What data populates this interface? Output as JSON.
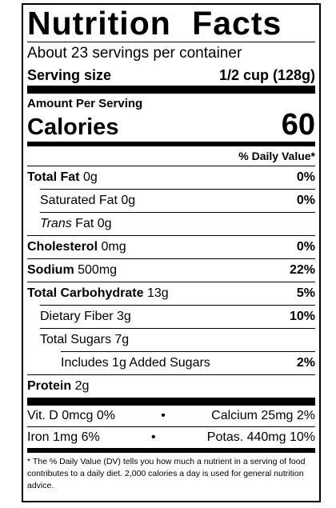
{
  "title": "Nutrition Facts",
  "servings": "About 23 servings per container",
  "serving_size": {
    "label": "Serving size",
    "value": "1/2 cup (128g)"
  },
  "amount_per_serving": "Amount Per Serving",
  "calories": {
    "label": "Calories",
    "value": 60
  },
  "daily_value_header": "% Daily Value*",
  "nutrients": [
    {
      "name": "Total Fat",
      "amount": "0g",
      "dv": "0%"
    },
    {
      "name": "Saturated Fat",
      "amount": "0g",
      "dv": "0%"
    },
    {
      "name_italic": "Trans",
      "name": "Fat",
      "amount": "0g"
    },
    {
      "name": "Cholesterol",
      "amount": "0mg",
      "dv": "0%"
    },
    {
      "name": "Sodium",
      "amount": "500mg",
      "dv": "22%"
    },
    {
      "name": "Total Carbohydrate",
      "amount": "13g",
      "dv": "5%"
    },
    {
      "name": "Dietary Fiber",
      "amount": "3g",
      "dv": "10%"
    },
    {
      "name": "Total Sugars",
      "amount": "7g"
    },
    {
      "name": "Includes 1g Added Sugars",
      "dv": "2%"
    },
    {
      "name": "Protein",
      "amount": "2g"
    }
  ],
  "vitamins": [
    [
      "Vit. D 0mcg 0%",
      "Calcium 25mg 2%"
    ],
    [
      "Iron 1mg 6%",
      "Potas. 440mg 10%"
    ]
  ],
  "separator": "•",
  "footnote": "* The % Daily Value (DV) tells you how much a nutrient in a serving of food contributes to a daily diet. 2,000 calories a day is used for general nutrition advice."
}
